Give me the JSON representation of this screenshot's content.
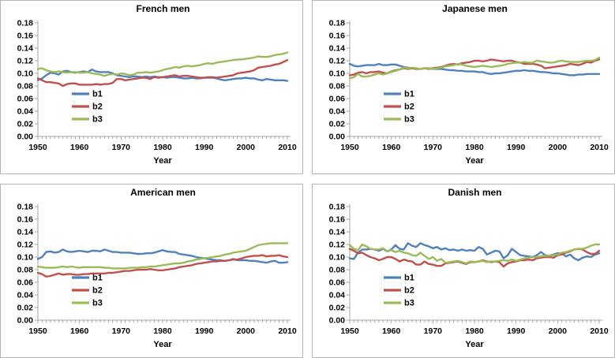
{
  "page": {
    "background": "#ffffff"
  },
  "colors": {
    "series_blue": "#4F81BD",
    "series_red": "#C0504D",
    "series_green": "#9BBB59",
    "axis": "#a6a6a6",
    "text": "#000000",
    "panel_border": "#b5b5b5"
  },
  "chart_data": [
    {
      "type": "line",
      "title": "French men",
      "xlabel": "Year",
      "x_start": 1950,
      "x_end": 2010,
      "x_step": 1,
      "xtick_labels": [
        "1950",
        "1960",
        "1970",
        "1980",
        "1990",
        "2000",
        "2010"
      ],
      "ytick_labels": [
        "0.00",
        "0.02",
        "0.04",
        "0.06",
        "0.08",
        "0.10",
        "0.12",
        "0.14",
        "0.16",
        "0.18"
      ],
      "ylim": [
        0,
        0.18
      ],
      "grid": false,
      "legend_position": "inside-left",
      "series": [
        {
          "name": "b1",
          "color": "#4F81BD",
          "values": [
            0.089,
            0.092,
            0.097,
            0.101,
            0.1,
            0.098,
            0.103,
            0.104,
            0.102,
            0.101,
            0.102,
            0.103,
            0.102,
            0.106,
            0.103,
            0.102,
            0.102,
            0.102,
            0.1,
            0.097,
            0.096,
            0.095,
            0.094,
            0.095,
            0.095,
            0.094,
            0.095,
            0.094,
            0.095,
            0.094,
            0.094,
            0.093,
            0.094,
            0.094,
            0.093,
            0.092,
            0.092,
            0.093,
            0.092,
            0.092,
            0.093,
            0.093,
            0.093,
            0.092,
            0.09,
            0.089,
            0.09,
            0.091,
            0.092,
            0.092,
            0.093,
            0.092,
            0.092,
            0.09,
            0.089,
            0.091,
            0.09,
            0.089,
            0.089,
            0.089,
            0.088
          ]
        },
        {
          "name": "b2",
          "color": "#C0504D",
          "values": [
            0.092,
            0.089,
            0.086,
            0.086,
            0.085,
            0.084,
            0.08,
            0.083,
            0.084,
            0.084,
            0.082,
            0.082,
            0.082,
            0.082,
            0.083,
            0.082,
            0.083,
            0.083,
            0.085,
            0.091,
            0.091,
            0.089,
            0.09,
            0.091,
            0.092,
            0.093,
            0.093,
            0.091,
            0.094,
            0.093,
            0.094,
            0.095,
            0.096,
            0.097,
            0.095,
            0.096,
            0.096,
            0.095,
            0.094,
            0.093,
            0.093,
            0.094,
            0.094,
            0.093,
            0.094,
            0.095,
            0.096,
            0.097,
            0.1,
            0.101,
            0.102,
            0.103,
            0.105,
            0.109,
            0.11,
            0.111,
            0.112,
            0.114,
            0.115,
            0.118,
            0.121
          ]
        },
        {
          "name": "b3",
          "color": "#9BBB59",
          "values": [
            0.107,
            0.108,
            0.105,
            0.103,
            0.102,
            0.103,
            0.102,
            0.101,
            0.102,
            0.102,
            0.101,
            0.101,
            0.102,
            0.1,
            0.099,
            0.098,
            0.096,
            0.098,
            0.099,
            0.098,
            0.1,
            0.099,
            0.097,
            0.098,
            0.101,
            0.101,
            0.102,
            0.101,
            0.102,
            0.103,
            0.105,
            0.107,
            0.108,
            0.11,
            0.109,
            0.111,
            0.112,
            0.111,
            0.112,
            0.113,
            0.115,
            0.116,
            0.115,
            0.117,
            0.118,
            0.119,
            0.12,
            0.121,
            0.122,
            0.122,
            0.123,
            0.124,
            0.125,
            0.127,
            0.126,
            0.126,
            0.127,
            0.129,
            0.13,
            0.131,
            0.133
          ]
        }
      ]
    },
    {
      "type": "line",
      "title": "Japanese men",
      "xlabel": "Year",
      "x_start": 1950,
      "x_end": 2010,
      "x_step": 1,
      "xtick_labels": [
        "1950",
        "1960",
        "1970",
        "1980",
        "1990",
        "2000",
        "2010"
      ],
      "ytick_labels": [
        "0.00",
        "0.02",
        "0.04",
        "0.06",
        "0.08",
        "0.10",
        "0.12",
        "0.14",
        "0.16",
        "0.18"
      ],
      "ylim": [
        0,
        0.18
      ],
      "grid": false,
      "legend_position": "inside-left",
      "series": [
        {
          "name": "b1",
          "color": "#4F81BD",
          "values": [
            0.115,
            0.112,
            0.111,
            0.112,
            0.113,
            0.113,
            0.113,
            0.115,
            0.113,
            0.113,
            0.114,
            0.114,
            0.112,
            0.11,
            0.109,
            0.108,
            0.108,
            0.107,
            0.108,
            0.108,
            0.107,
            0.107,
            0.107,
            0.106,
            0.105,
            0.105,
            0.104,
            0.104,
            0.103,
            0.103,
            0.103,
            0.102,
            0.102,
            0.1,
            0.099,
            0.1,
            0.1,
            0.101,
            0.102,
            0.103,
            0.104,
            0.104,
            0.105,
            0.104,
            0.104,
            0.103,
            0.102,
            0.102,
            0.101,
            0.1,
            0.1,
            0.099,
            0.098,
            0.097,
            0.097,
            0.098,
            0.098,
            0.099,
            0.099,
            0.099,
            0.099
          ]
        },
        {
          "name": "b2",
          "color": "#C0504D",
          "values": [
            0.097,
            0.098,
            0.101,
            0.102,
            0.1,
            0.102,
            0.102,
            0.103,
            0.101,
            0.1,
            0.103,
            0.105,
            0.106,
            0.108,
            0.107,
            0.108,
            0.107,
            0.107,
            0.108,
            0.107,
            0.108,
            0.109,
            0.11,
            0.112,
            0.114,
            0.115,
            0.114,
            0.116,
            0.117,
            0.118,
            0.12,
            0.12,
            0.119,
            0.12,
            0.122,
            0.121,
            0.12,
            0.119,
            0.12,
            0.12,
            0.118,
            0.117,
            0.115,
            0.115,
            0.115,
            0.114,
            0.112,
            0.108,
            0.109,
            0.11,
            0.111,
            0.112,
            0.113,
            0.115,
            0.114,
            0.113,
            0.115,
            0.118,
            0.117,
            0.12,
            0.122
          ]
        },
        {
          "name": "b3",
          "color": "#9BBB59",
          "values": [
            0.092,
            0.094,
            0.099,
            0.095,
            0.095,
            0.096,
            0.098,
            0.1,
            0.098,
            0.1,
            0.102,
            0.104,
            0.106,
            0.109,
            0.108,
            0.109,
            0.108,
            0.107,
            0.108,
            0.108,
            0.107,
            0.108,
            0.109,
            0.111,
            0.112,
            0.113,
            0.115,
            0.114,
            0.112,
            0.111,
            0.11,
            0.111,
            0.112,
            0.111,
            0.11,
            0.111,
            0.112,
            0.113,
            0.115,
            0.116,
            0.117,
            0.117,
            0.118,
            0.117,
            0.117,
            0.12,
            0.119,
            0.118,
            0.117,
            0.117,
            0.119,
            0.12,
            0.119,
            0.118,
            0.118,
            0.118,
            0.119,
            0.12,
            0.12,
            0.121,
            0.125
          ]
        }
      ]
    },
    {
      "type": "line",
      "title": "American men",
      "xlabel": "Year",
      "x_start": 1950,
      "x_end": 2010,
      "x_step": 1,
      "xtick_labels": [
        "1950",
        "1960",
        "1970",
        "1980",
        "1990",
        "2000",
        "2010"
      ],
      "ytick_labels": [
        "0.00",
        "0.02",
        "0.04",
        "0.06",
        "0.08",
        "0.10",
        "0.12",
        "0.14",
        "0.16",
        "0.18"
      ],
      "ylim": [
        0,
        0.18
      ],
      "grid": false,
      "legend_position": "inside-left",
      "series": [
        {
          "name": "b1",
          "color": "#4F81BD",
          "values": [
            0.097,
            0.1,
            0.108,
            0.109,
            0.107,
            0.108,
            0.112,
            0.109,
            0.108,
            0.109,
            0.11,
            0.109,
            0.108,
            0.11,
            0.11,
            0.109,
            0.112,
            0.11,
            0.108,
            0.108,
            0.107,
            0.107,
            0.107,
            0.106,
            0.105,
            0.105,
            0.106,
            0.106,
            0.107,
            0.109,
            0.111,
            0.109,
            0.108,
            0.108,
            0.105,
            0.104,
            0.103,
            0.102,
            0.1,
            0.099,
            0.098,
            0.097,
            0.096,
            0.095,
            0.095,
            0.094,
            0.095,
            0.097,
            0.095,
            0.095,
            0.095,
            0.094,
            0.094,
            0.093,
            0.092,
            0.091,
            0.093,
            0.094,
            0.091,
            0.091,
            0.092
          ]
        },
        {
          "name": "b2",
          "color": "#C0504D",
          "values": [
            0.075,
            0.073,
            0.069,
            0.07,
            0.072,
            0.074,
            0.072,
            0.073,
            0.073,
            0.072,
            0.072,
            0.073,
            0.073,
            0.074,
            0.074,
            0.074,
            0.074,
            0.075,
            0.075,
            0.076,
            0.077,
            0.078,
            0.078,
            0.079,
            0.08,
            0.08,
            0.08,
            0.081,
            0.08,
            0.079,
            0.079,
            0.08,
            0.081,
            0.082,
            0.084,
            0.085,
            0.086,
            0.087,
            0.089,
            0.09,
            0.091,
            0.092,
            0.093,
            0.093,
            0.094,
            0.094,
            0.095,
            0.096,
            0.096,
            0.098,
            0.1,
            0.101,
            0.102,
            0.102,
            0.103,
            0.101,
            0.102,
            0.102,
            0.103,
            0.101,
            0.1
          ]
        },
        {
          "name": "b3",
          "color": "#9BBB59",
          "values": [
            0.085,
            0.084,
            0.083,
            0.083,
            0.083,
            0.084,
            0.085,
            0.084,
            0.085,
            0.084,
            0.083,
            0.084,
            0.084,
            0.084,
            0.084,
            0.084,
            0.083,
            0.083,
            0.082,
            0.082,
            0.082,
            0.082,
            0.083,
            0.083,
            0.083,
            0.084,
            0.084,
            0.085,
            0.085,
            0.086,
            0.087,
            0.088,
            0.089,
            0.09,
            0.09,
            0.091,
            0.093,
            0.094,
            0.096,
            0.097,
            0.098,
            0.099,
            0.1,
            0.101,
            0.102,
            0.104,
            0.105,
            0.107,
            0.108,
            0.109,
            0.11,
            0.113,
            0.116,
            0.119,
            0.12,
            0.121,
            0.122,
            0.122,
            0.122,
            0.122,
            0.122
          ]
        }
      ]
    },
    {
      "type": "line",
      "title": "Danish men",
      "xlabel": "Year",
      "x_start": 1950,
      "x_end": 2010,
      "x_step": 1,
      "xtick_labels": [
        "1950",
        "1960",
        "1970",
        "1980",
        "1990",
        "2000",
        "2010"
      ],
      "ytick_labels": [
        "0.00",
        "0.02",
        "0.04",
        "0.06",
        "0.08",
        "0.10",
        "0.12",
        "0.14",
        "0.16",
        "0.18"
      ],
      "ylim": [
        0,
        0.18
      ],
      "grid": false,
      "legend_position": "inside-left",
      "series": [
        {
          "name": "b1",
          "color": "#4F81BD",
          "values": [
            0.098,
            0.097,
            0.107,
            0.112,
            0.112,
            0.113,
            0.112,
            0.11,
            0.113,
            0.109,
            0.112,
            0.119,
            0.113,
            0.112,
            0.122,
            0.118,
            0.116,
            0.122,
            0.119,
            0.117,
            0.114,
            0.116,
            0.112,
            0.114,
            0.111,
            0.112,
            0.11,
            0.112,
            0.11,
            0.111,
            0.11,
            0.116,
            0.113,
            0.104,
            0.107,
            0.11,
            0.109,
            0.098,
            0.103,
            0.113,
            0.108,
            0.103,
            0.102,
            0.101,
            0.1,
            0.103,
            0.108,
            0.103,
            0.102,
            0.104,
            0.106,
            0.106,
            0.101,
            0.104,
            0.098,
            0.095,
            0.099,
            0.101,
            0.1,
            0.104,
            0.106
          ]
        },
        {
          "name": "b2",
          "color": "#C0504D",
          "values": [
            0.113,
            0.11,
            0.106,
            0.107,
            0.103,
            0.1,
            0.098,
            0.095,
            0.097,
            0.1,
            0.1,
            0.097,
            0.093,
            0.096,
            0.094,
            0.093,
            0.088,
            0.088,
            0.093,
            0.089,
            0.088,
            0.086,
            0.086,
            0.09,
            0.091,
            0.092,
            0.093,
            0.091,
            0.089,
            0.092,
            0.092,
            0.093,
            0.095,
            0.093,
            0.092,
            0.093,
            0.092,
            0.085,
            0.09,
            0.092,
            0.093,
            0.095,
            0.095,
            0.096,
            0.095,
            0.098,
            0.099,
            0.1,
            0.1,
            0.099,
            0.103,
            0.104,
            0.107,
            0.109,
            0.112,
            0.113,
            0.112,
            0.108,
            0.105,
            0.105,
            0.11
          ]
        },
        {
          "name": "b3",
          "color": "#9BBB59",
          "values": [
            0.119,
            0.113,
            0.111,
            0.12,
            0.117,
            0.113,
            0.112,
            0.112,
            0.114,
            0.109,
            0.111,
            0.108,
            0.11,
            0.107,
            0.106,
            0.103,
            0.102,
            0.107,
            0.102,
            0.097,
            0.1,
            0.094,
            0.097,
            0.091,
            0.092,
            0.093,
            0.094,
            0.092,
            0.09,
            0.093,
            0.092,
            0.093,
            0.094,
            0.092,
            0.093,
            0.093,
            0.094,
            0.095,
            0.094,
            0.096,
            0.094,
            0.096,
            0.098,
            0.099,
            0.1,
            0.1,
            0.101,
            0.102,
            0.102,
            0.103,
            0.104,
            0.107,
            0.108,
            0.11,
            0.112,
            0.113,
            0.113,
            0.115,
            0.118,
            0.12,
            0.12
          ]
        }
      ]
    }
  ]
}
